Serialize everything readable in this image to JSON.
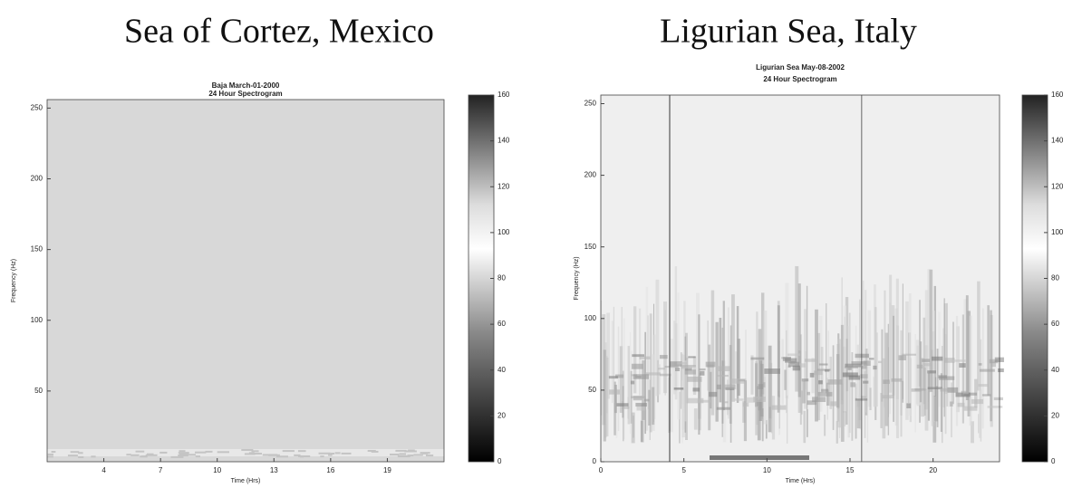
{
  "chart_data": [
    {
      "type": "heatmap",
      "heading": "Sea of Cortez, Mexico",
      "title": "Baja March-01-2000",
      "subtitle": "24 Hour Spectrogram",
      "xlabel": "Time (Hrs)",
      "ylabel": "Frequency (Hz)",
      "xlim": [
        1,
        22
      ],
      "xticks": [
        4,
        7,
        10,
        13,
        16,
        19
      ],
      "ylim": [
        0,
        256
      ],
      "yticks": [
        50,
        100,
        150,
        200,
        250
      ],
      "clim": [
        0,
        160
      ],
      "cticks": [
        0,
        20,
        40,
        60,
        80,
        100,
        120,
        140,
        160
      ]
    },
    {
      "type": "heatmap",
      "heading": "Ligurian Sea, Italy",
      "title": "Ligurian Sea May-08-2002",
      "subtitle": "24 Hour Spectrogram",
      "xlabel": "Time (Hrs)",
      "ylabel": "Frequency (Hz)",
      "xlim": [
        0,
        24
      ],
      "xticks": [
        0,
        5,
        10,
        15,
        20
      ],
      "ylim": [
        0,
        256
      ],
      "yticks": [
        0,
        50,
        100,
        150,
        200,
        250
      ],
      "clim": [
        0,
        160
      ],
      "cticks": [
        0,
        20,
        40,
        60,
        80,
        100,
        120,
        140,
        160
      ]
    }
  ]
}
